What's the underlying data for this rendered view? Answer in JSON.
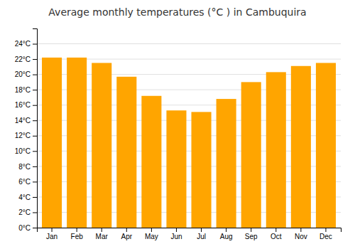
{
  "chart_data": {
    "type": "bar",
    "title": "Average monthly temperatures (°C ) in Cambuquira",
    "categories": [
      "Jan",
      "Feb",
      "Mar",
      "Apr",
      "May",
      "Jun",
      "Jul",
      "Aug",
      "Sep",
      "Oct",
      "Nov",
      "Dec"
    ],
    "values": [
      22.2,
      22.2,
      21.5,
      19.7,
      17.2,
      15.3,
      15.1,
      16.8,
      19.0,
      20.3,
      21.1,
      21.5
    ],
    "color": "#FFA500",
    "ylim": [
      0,
      26
    ],
    "yticks": [
      {
        "value": 0,
        "label": "0°C"
      },
      {
        "value": 2,
        "label": "2°C"
      },
      {
        "value": 4,
        "label": "4°C"
      },
      {
        "value": 6,
        "label": "6°C"
      },
      {
        "value": 8,
        "label": "8°C"
      },
      {
        "value": 10,
        "label": "10°C"
      },
      {
        "value": 12,
        "label": "12°C"
      },
      {
        "value": 14,
        "label": "14°C"
      },
      {
        "value": 16,
        "label": "16°C"
      },
      {
        "value": 18,
        "label": "18°C"
      },
      {
        "value": 20,
        "label": "20°C"
      },
      {
        "value": 22,
        "label": "22°C"
      },
      {
        "value": 24,
        "label": "24°C"
      }
    ],
    "grid": true
  }
}
